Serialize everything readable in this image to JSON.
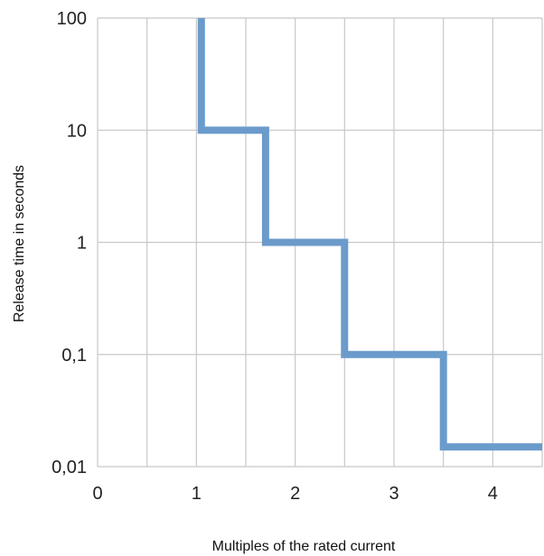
{
  "chart_data": {
    "type": "line",
    "step": true,
    "xlabel": "Multiples of the rated current",
    "ylabel": "Release time in seconds",
    "x_ticks": [
      {
        "value": 0,
        "label": "0"
      },
      {
        "value": 1,
        "label": "1"
      },
      {
        "value": 2,
        "label": "2"
      },
      {
        "value": 3,
        "label": "3"
      },
      {
        "value": 4,
        "label": "4"
      }
    ],
    "x_grid_step": 0.5,
    "xlim": [
      0,
      4.5
    ],
    "y_scale": "log",
    "y_ticks": [
      {
        "value": 0.01,
        "label": "0,01"
      },
      {
        "value": 0.1,
        "label": "0,1"
      },
      {
        "value": 1,
        "label": "1"
      },
      {
        "value": 10,
        "label": "10"
      },
      {
        "value": 100,
        "label": "100"
      }
    ],
    "ylim": [
      0.01,
      100
    ],
    "grid": true,
    "series": [
      {
        "color": "#6b9bcb",
        "points": [
          {
            "x": 1.05,
            "y": 100
          },
          {
            "x": 1.05,
            "y": 10
          },
          {
            "x": 1.7,
            "y": 10
          },
          {
            "x": 1.7,
            "y": 1
          },
          {
            "x": 2.5,
            "y": 1
          },
          {
            "x": 2.5,
            "y": 0.1
          },
          {
            "x": 3.5,
            "y": 0.1
          },
          {
            "x": 3.5,
            "y": 0.015
          },
          {
            "x": 4.5,
            "y": 0.015
          }
        ]
      }
    ]
  }
}
